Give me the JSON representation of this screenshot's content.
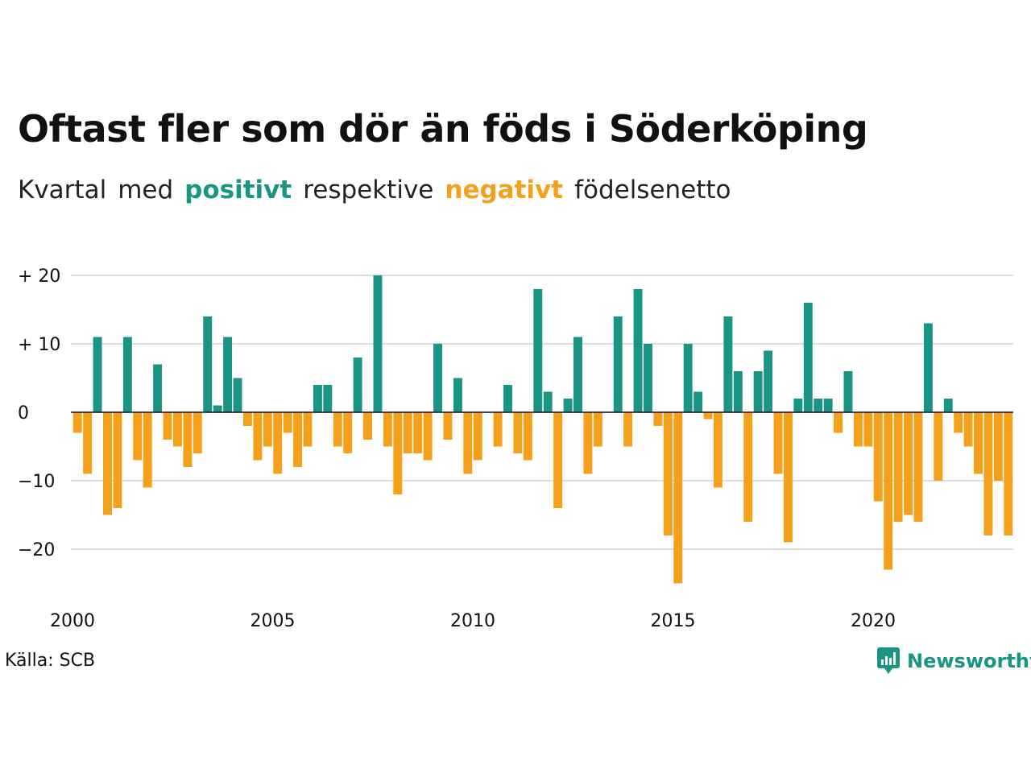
{
  "title": "Oftast fler som dör än föds i Söderköping",
  "subtitle": {
    "part1": "Kvartal",
    "part2": "med",
    "positive": "positivt",
    "part3": "respektive",
    "negative": "negativt",
    "part4": "födelsenetto"
  },
  "source": "Källa: SCB",
  "brand": "Newsworthy",
  "colors": {
    "positive": "#1a9584",
    "negative": "#f5a01a",
    "grid": "#dddddd",
    "brand": "#1a9584"
  },
  "chart_data": {
    "type": "bar",
    "x_start_year": 2000,
    "periods_per_year": 4,
    "xticks": [
      "2000",
      "2005",
      "2010",
      "2015",
      "2020"
    ],
    "yticks": [
      {
        "value": 20,
        "label": "+ 20"
      },
      {
        "value": 10,
        "label": "+ 10"
      },
      {
        "value": 0,
        "label": "0"
      },
      {
        "value": -10,
        "label": "−10"
      },
      {
        "value": -20,
        "label": "−20"
      }
    ],
    "ylim": [
      -27,
      21
    ],
    "grid": true,
    "values": [
      -3,
      -9,
      11,
      -15,
      -14,
      11,
      -7,
      -11,
      7,
      -4,
      -5,
      -8,
      -6,
      14,
      1,
      11,
      5,
      -2,
      -7,
      -5,
      -9,
      -3,
      -8,
      -5,
      4,
      4,
      -5,
      -6,
      8,
      -4,
      20,
      -5,
      -12,
      -6,
      -6,
      -7,
      10,
      -4,
      5,
      -9,
      -7,
      0,
      -5,
      4,
      -6,
      -7,
      18,
      3,
      -14,
      2,
      11,
      -9,
      -5,
      0,
      14,
      -5,
      18,
      10,
      -2,
      -18,
      -25,
      10,
      3,
      -1,
      -11,
      14,
      6,
      -16,
      6,
      9,
      -9,
      -19,
      2,
      16,
      2,
      2,
      -3,
      6,
      -5,
      -5,
      -13,
      -23,
      -16,
      -15,
      -16,
      13,
      -10,
      2,
      -3,
      -5,
      -9,
      -18,
      -10,
      -18
    ]
  }
}
